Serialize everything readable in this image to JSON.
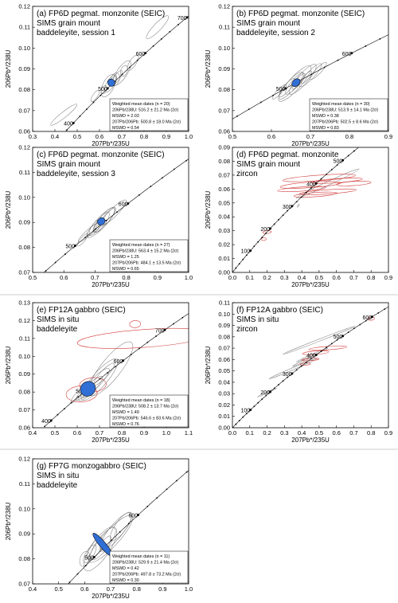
{
  "chart_data": [
    {
      "panel": "a",
      "type": "scatter",
      "title_lines": [
        "(a) FP6D pegmat. monzonite (SEIC)",
        "SIMS grain mount",
        "baddeleyite, session 1"
      ],
      "xlabel": "207Pb*/235U",
      "ylabel": "206Pb*/238U",
      "xlim": [
        0.3,
        1.0
      ],
      "ylim": [
        0.06,
        0.12
      ],
      "xticks": [
        "0.3",
        "0.4",
        "0.5",
        "0.6",
        "0.7",
        "0.8",
        "0.9",
        "1.0"
      ],
      "yticks": [
        "0.06",
        "0.07",
        "0.08",
        "0.09",
        "0.10",
        "0.11",
        "0.12"
      ],
      "concordia_range_ma": [
        350,
        760
      ],
      "age_labels": [
        400,
        500,
        600,
        700
      ],
      "mean_ellipse": {
        "x": 0.653,
        "y": 0.0834,
        "rx": 0.016,
        "ry": 0.0018
      },
      "ellipses_grey": [
        [
          0.65,
          0.083,
          0.09,
          0.008
        ],
        [
          0.66,
          0.084,
          0.05,
          0.005
        ],
        [
          0.64,
          0.082,
          0.11,
          0.012
        ],
        [
          0.7,
          0.088,
          0.13,
          0.011
        ],
        [
          0.68,
          0.086,
          0.07,
          0.006
        ],
        [
          0.62,
          0.08,
          0.04,
          0.005
        ],
        [
          0.75,
          0.093,
          0.08,
          0.007
        ],
        [
          0.58,
          0.077,
          0.06,
          0.005
        ],
        [
          0.86,
          0.11,
          0.14,
          0.008
        ],
        [
          0.44,
          0.068,
          0.15,
          0.006
        ],
        [
          0.67,
          0.085,
          0.06,
          0.009
        ],
        [
          0.71,
          0.089,
          0.05,
          0.007
        ]
      ],
      "ellipses_red": [],
      "stats": [
        "Weighted mean dates (n = 20)",
        "206Pb/238U: 516.2 ± 21.2 Ma (2σ)",
        "MSWD = 2.03",
        "207Pb/206Pb: 500.8 ± 18.0 Ma (2σ)",
        "MSWD = 0.54"
      ]
    },
    {
      "panel": "b",
      "type": "scatter",
      "title_lines": [
        "(b) FP6D pegmat. monzonite (SEIC)",
        "SIMS grain mount",
        "baddeleyite, session 2"
      ],
      "xlabel": "207Pb*/235U",
      "ylabel": "206Pb*/238U",
      "xlim": [
        0.5,
        0.9
      ],
      "ylim": [
        0.06,
        0.12
      ],
      "xticks": [
        "0.5",
        "0.6",
        "0.7",
        "0.8",
        "0.9"
      ],
      "yticks": [
        "0.06",
        "0.07",
        "0.08",
        "0.09",
        "0.10",
        "0.11",
        "0.12"
      ],
      "concordia_range_ma": [
        380,
        680
      ],
      "age_labels": [
        500,
        600
      ],
      "mean_ellipse": {
        "x": 0.663,
        "y": 0.0834,
        "rx": 0.012,
        "ry": 0.0016
      },
      "ellipses_grey": [
        [
          0.66,
          0.083,
          0.07,
          0.008
        ],
        [
          0.67,
          0.084,
          0.05,
          0.006
        ],
        [
          0.65,
          0.082,
          0.09,
          0.01
        ],
        [
          0.68,
          0.085,
          0.1,
          0.011
        ],
        [
          0.64,
          0.081,
          0.06,
          0.007
        ],
        [
          0.7,
          0.087,
          0.08,
          0.008
        ],
        [
          0.62,
          0.079,
          0.05,
          0.005
        ],
        [
          0.72,
          0.089,
          0.06,
          0.006
        ],
        [
          0.66,
          0.083,
          0.12,
          0.013
        ],
        [
          0.69,
          0.086,
          0.04,
          0.005
        ]
      ],
      "ellipses_red": [],
      "stats": [
        "Weighted mean dates (n = 30)",
        "206Pb/238U: 513.9 ± 14.1 Ma (2σ)",
        "MSWD = 0.38",
        "207Pb/206Pb: 502.5 ± 8.6 Ma (2σ)",
        "MSWD = 0.83"
      ]
    },
    {
      "panel": "c",
      "type": "scatter",
      "title_lines": [
        "(c) FP6D pegmat. monzonite (SEIC)",
        "SIMS grain mount",
        "baddeleyite, session 3"
      ],
      "xlabel": "207Pb*/235U",
      "ylabel": "206Pb*/238U",
      "xlim": [
        0.5,
        1.0
      ],
      "ylim": [
        0.07,
        0.12
      ],
      "xticks": [
        "0.5",
        "0.6",
        "0.7",
        "0.8",
        "0.9",
        "1.0"
      ],
      "yticks": [
        "0.07",
        "0.08",
        "0.09",
        "0.10",
        "0.11",
        "0.12"
      ],
      "concordia_range_ma": [
        420,
        740
      ],
      "age_labels": [
        500,
        600
      ],
      "mean_ellipse": {
        "x": 0.72,
        "y": 0.0904,
        "rx": 0.013,
        "ry": 0.0014
      },
      "ellipses_grey": [
        [
          0.72,
          0.09,
          0.08,
          0.007
        ],
        [
          0.71,
          0.089,
          0.05,
          0.005
        ],
        [
          0.73,
          0.091,
          0.1,
          0.008
        ],
        [
          0.7,
          0.088,
          0.06,
          0.006
        ],
        [
          0.74,
          0.092,
          0.07,
          0.006
        ],
        [
          0.69,
          0.087,
          0.05,
          0.004
        ],
        [
          0.76,
          0.094,
          0.11,
          0.007
        ],
        [
          0.68,
          0.086,
          0.09,
          0.005
        ],
        [
          0.72,
          0.09,
          0.13,
          0.009
        ],
        [
          0.66,
          0.083,
          0.05,
          0.004
        ]
      ],
      "ellipses_red": [],
      "stats": [
        "Weighted mean dates (n = 27)",
        "206Pb/238U: 563.4 ± 15.2 Ma (2σ)",
        "MSWD = 1.25",
        "207Pb/206Pb: 484.1 ± 13.5 Ma (2σ)",
        "MSWD = 0.65"
      ]
    },
    {
      "panel": "d",
      "type": "scatter",
      "title_lines": [
        "(d) FP6D pegmat. monzonite",
        "SIMS grain mount",
        "zircon"
      ],
      "xlabel": "207Pb*/235U",
      "ylabel": "206Pb*/238U",
      "xlim": [
        0.0,
        0.9
      ],
      "ylim": [
        0.0,
        0.09
      ],
      "xticks": [
        "0.0",
        "0.1",
        "0.2",
        "0.3",
        "0.4",
        "0.5",
        "0.6",
        "0.7",
        "0.8",
        "0.9"
      ],
      "yticks": [
        "0.00",
        "0.01",
        "0.02",
        "0.03",
        "0.04",
        "0.05",
        "0.06",
        "0.07",
        "0.08",
        "0.09"
      ],
      "concordia_range_ma": [
        0,
        560
      ],
      "age_labels": [
        100,
        200,
        300,
        400,
        500
      ],
      "mean_ellipse": null,
      "ellipses_grey": [
        [
          0.55,
          0.064,
          0.4,
          0.006
        ],
        [
          0.38,
          0.048,
          0.02,
          0.002
        ]
      ],
      "ellipses_red": [
        [
          0.5,
          0.068,
          0.42,
          0.004
        ],
        [
          0.45,
          0.063,
          0.35,
          0.004
        ],
        [
          0.6,
          0.066,
          0.3,
          0.003
        ],
        [
          0.4,
          0.06,
          0.28,
          0.003
        ],
        [
          0.55,
          0.058,
          0.33,
          0.003
        ],
        [
          0.7,
          0.064,
          0.2,
          0.003
        ],
        [
          0.48,
          0.056,
          0.25,
          0.003
        ],
        [
          0.2,
          0.029,
          0.05,
          0.002
        ],
        [
          0.18,
          0.024,
          0.03,
          0.002
        ]
      ],
      "stats": []
    },
    {
      "panel": "e",
      "type": "scatter",
      "title_lines": [
        "(e) FP12A gabbro (SEIC)",
        "SIMS in situ",
        "baddeleyite"
      ],
      "xlabel": "207Pb*/235U",
      "ylabel": "206Pb*/238U",
      "xlim": [
        0.4,
        1.1
      ],
      "ylim": [
        0.06,
        0.13
      ],
      "xticks": [
        "0.4",
        "0.5",
        "0.6",
        "0.7",
        "0.8",
        "0.9",
        "1.0",
        "1.1"
      ],
      "yticks": [
        "0.06",
        "0.07",
        "0.08",
        "0.09",
        "0.10",
        "0.11",
        "0.12",
        "0.13"
      ],
      "concordia_range_ma": [
        380,
        780
      ],
      "age_labels": [
        400,
        500,
        600,
        700
      ],
      "mean_ellipse": {
        "x": 0.648,
        "y": 0.0818,
        "rx": 0.035,
        "ry": 0.004
      },
      "ellipses_grey": [
        [
          0.66,
          0.082,
          0.15,
          0.01
        ],
        [
          0.7,
          0.087,
          0.24,
          0.018
        ],
        [
          0.63,
          0.08,
          0.1,
          0.007
        ],
        [
          0.68,
          0.085,
          0.18,
          0.012
        ],
        [
          0.6,
          0.078,
          0.08,
          0.006
        ],
        [
          0.72,
          0.09,
          0.13,
          0.009
        ],
        [
          0.65,
          0.081,
          0.07,
          0.005
        ],
        [
          0.75,
          0.093,
          0.3,
          0.025
        ]
      ],
      "ellipses_red": [
        [
          0.62,
          0.079,
          0.14,
          0.009
        ],
        [
          0.67,
          0.084,
          0.12,
          0.008
        ],
        [
          0.9,
          0.11,
          0.6,
          0.01
        ],
        [
          0.86,
          0.118,
          0.05,
          0.004
        ]
      ],
      "stats": [
        "Weighted mean dates (n = 18)",
        "206Pb/238U: 508.2 ± 13.7 Ma (2σ)",
        "MSWD = 1.49",
        "207Pb/206Pb: 546.6 ± 83.6 Ma (2σ)",
        "MSWD = 0.76"
      ]
    },
    {
      "panel": "f",
      "type": "scatter",
      "title_lines": [
        "(f) FP12A gabbro (SEIC)",
        "SIMS in situ",
        "zircon"
      ],
      "xlabel": "207Pb*/235U",
      "ylabel": "206Pb*/238U",
      "xlim": [
        0.0,
        0.9
      ],
      "ylim": [
        0.0,
        0.11
      ],
      "xticks": [
        "0.0",
        "0.1",
        "0.2",
        "0.3",
        "0.4",
        "0.5",
        "0.6",
        "0.7",
        "0.8",
        "0.9"
      ],
      "yticks": [
        "0.00",
        "0.01",
        "0.02",
        "0.03",
        "0.04",
        "0.05",
        "0.06",
        "0.07",
        "0.08",
        "0.09",
        "0.10",
        "0.11"
      ],
      "concordia_range_ma": [
        0,
        680
      ],
      "age_labels": [
        100,
        200,
        300,
        400,
        500,
        600
      ],
      "mean_ellipse": null,
      "ellipses_grey": [
        [
          0.5,
          0.077,
          0.45,
          0.004
        ],
        [
          0.35,
          0.052,
          0.3,
          0.004
        ],
        [
          0.2,
          0.031,
          0.12,
          0.002
        ],
        [
          0.46,
          0.064,
          0.2,
          0.003
        ],
        [
          0.4,
          0.058,
          0.12,
          0.003
        ]
      ],
      "ellipses_red": [
        [
          0.55,
          0.07,
          0.22,
          0.003
        ],
        [
          0.48,
          0.066,
          0.15,
          0.003
        ],
        [
          0.45,
          0.06,
          0.1,
          0.002
        ],
        [
          0.8,
          0.096,
          0.04,
          0.003
        ],
        [
          0.42,
          0.056,
          0.06,
          0.002
        ]
      ],
      "stats": []
    },
    {
      "panel": "g",
      "type": "scatter",
      "title_lines": [
        "(g) FP7G monzogabbro (SEIC)",
        "SIMS in situ",
        "baddeleyite"
      ],
      "xlabel": "207Pb*/235U",
      "ylabel": "206Pb*/238U",
      "xlim": [
        0.4,
        1.0
      ],
      "ylim": [
        0.07,
        0.12
      ],
      "xticks": [
        "0.4",
        "0.5",
        "0.6",
        "0.7",
        "0.8",
        "0.9",
        "1.0"
      ],
      "yticks": [
        "0.07",
        "0.08",
        "0.09",
        "0.10",
        "0.11",
        "0.12"
      ],
      "concordia_range_ma": [
        380,
        740
      ],
      "age_labels": [
        500,
        600
      ],
      "mean_ellipse": {
        "x": 0.67,
        "y": 0.0856,
        "rx": 0.012,
        "ry": 0.006
      },
      "ellipses_grey": [
        [
          0.67,
          0.086,
          0.15,
          0.011
        ],
        [
          0.7,
          0.088,
          0.24,
          0.014
        ],
        [
          0.64,
          0.084,
          0.1,
          0.009
        ],
        [
          0.72,
          0.091,
          0.18,
          0.012
        ],
        [
          0.62,
          0.082,
          0.08,
          0.007
        ],
        [
          0.68,
          0.086,
          0.07,
          0.006
        ],
        [
          0.74,
          0.093,
          0.13,
          0.01
        ],
        [
          0.66,
          0.084,
          0.2,
          0.016
        ],
        [
          0.6,
          0.08,
          0.06,
          0.008
        ]
      ],
      "ellipses_red": [],
      "stats": [
        "Weighted mean dates (n = 11)",
        "206Pb/238U: 529.9 ± 21.4 Ma (2σ)",
        "MSWD = 0.42",
        "207Pb/206Pb: 497.8 ± 73.2 Ma (2σ)",
        "MSWD = 0.30"
      ]
    }
  ]
}
